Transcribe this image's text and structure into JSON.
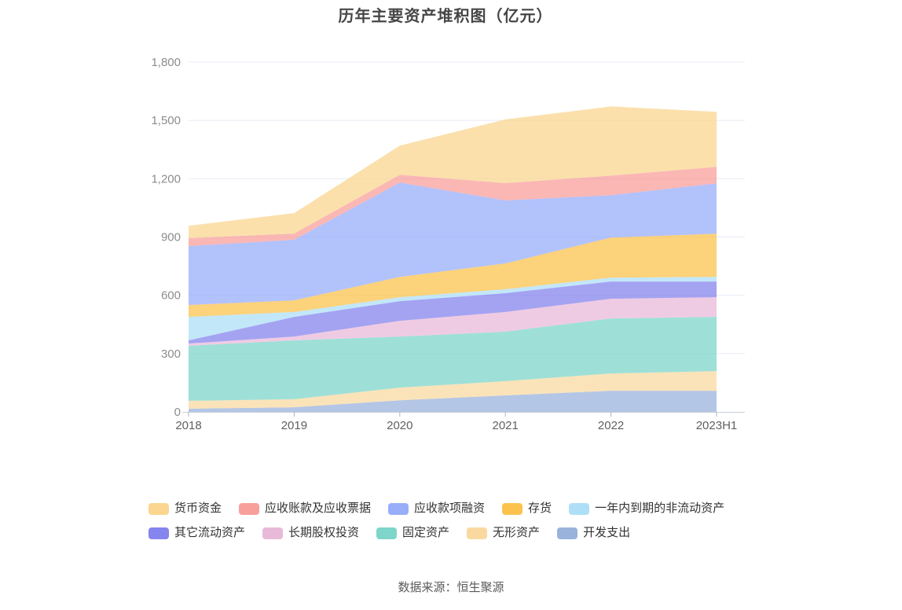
{
  "title": "历年主要资产堆积图（亿元）",
  "source": "数据来源：恒生聚源",
  "chart_data": {
    "type": "area",
    "stacked": true,
    "smooth": false,
    "grid": true,
    "legend_position": "bottom",
    "title": "历年主要资产堆积图（亿元）",
    "xlabel": "",
    "ylabel": "",
    "ylim": [
      0,
      1800
    ],
    "ytick_interval": 300,
    "ytick_labels": [
      "0",
      "300",
      "600",
      "900",
      "1,200",
      "1,500",
      "1,800"
    ],
    "categories": [
      "2018",
      "2019",
      "2020",
      "2021",
      "2022",
      "2023H1"
    ],
    "stacking_note": "series listed in legend order; drawn stacked bottom-to-top in reverse of this order",
    "series": [
      {
        "id": "monetary-funds",
        "name": "货币资金",
        "color": "#FAD690",
        "values": [
          64,
          105,
          150,
          328,
          356,
          283
        ]
      },
      {
        "id": "notes-and-accounts-receivable",
        "name": "应收账款及应收票据",
        "color": "#F89F9B",
        "values": [
          41,
          32,
          40,
          89,
          101,
          85
        ]
      },
      {
        "id": "receivables-financing",
        "name": "应收款项融资",
        "color": "#98AEF9",
        "values": [
          303,
          312,
          485,
          324,
          218,
          259
        ]
      },
      {
        "id": "inventory",
        "name": "存货",
        "color": "#FBC34E",
        "values": [
          61,
          60,
          105,
          133,
          206,
          222
        ]
      },
      {
        "id": "noncurrent-assets-due-within-one-year",
        "name": "一年内到期的非流动资产",
        "color": "#AEDFF7",
        "values": [
          121,
          25,
          20,
          20,
          20,
          24
        ]
      },
      {
        "id": "other-current-assets",
        "name": "其它流动资产",
        "color": "#8684EE",
        "values": [
          16,
          101,
          101,
          97,
          89,
          81
        ]
      },
      {
        "id": "long-term-equity-investment",
        "name": "长期股权投资",
        "color": "#E9B9DA",
        "values": [
          12,
          20,
          81,
          101,
          101,
          101
        ]
      },
      {
        "id": "fixed-assets",
        "name": "固定资产",
        "color": "#7DD6C9",
        "values": [
          283,
          303,
          263,
          255,
          283,
          279
        ]
      },
      {
        "id": "intangible-assets",
        "name": "无形资产",
        "color": "#FAD9A1",
        "values": [
          41,
          41,
          65,
          73,
          89,
          101
        ]
      },
      {
        "id": "development-expenditure",
        "name": "开发支出",
        "color": "#99B3DC",
        "values": [
          16,
          24,
          60,
          85,
          109,
          109
        ]
      }
    ]
  }
}
